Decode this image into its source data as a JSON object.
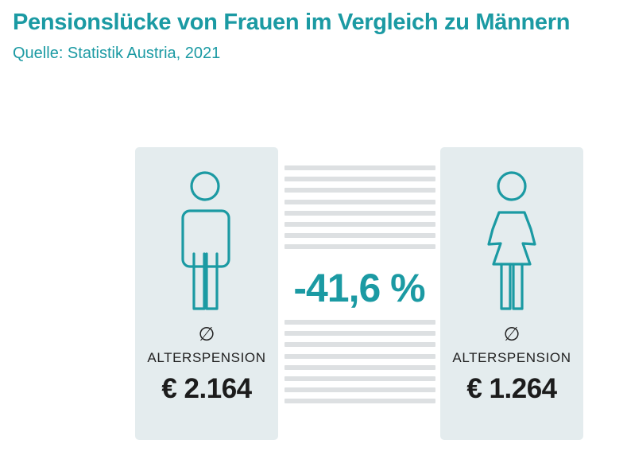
{
  "header": {
    "title": "Pensionslücke von Frauen im Vergleich zu Männern",
    "source": "Quelle: Statistik Austria, 2021"
  },
  "colors": {
    "accent": "#1b9aa3",
    "card_background": "#e4ecee",
    "stripe": "#dde0e2",
    "value_text": "#1c1c1c"
  },
  "men": {
    "icon": "man-icon",
    "avg_symbol": "∅",
    "label": "ALTERSPENSION",
    "value": "€ 2.164"
  },
  "women": {
    "icon": "woman-icon",
    "avg_symbol": "∅",
    "label": "ALTERSPENSION",
    "value": "€ 1.264"
  },
  "gap": {
    "value": "-41,6 %"
  }
}
